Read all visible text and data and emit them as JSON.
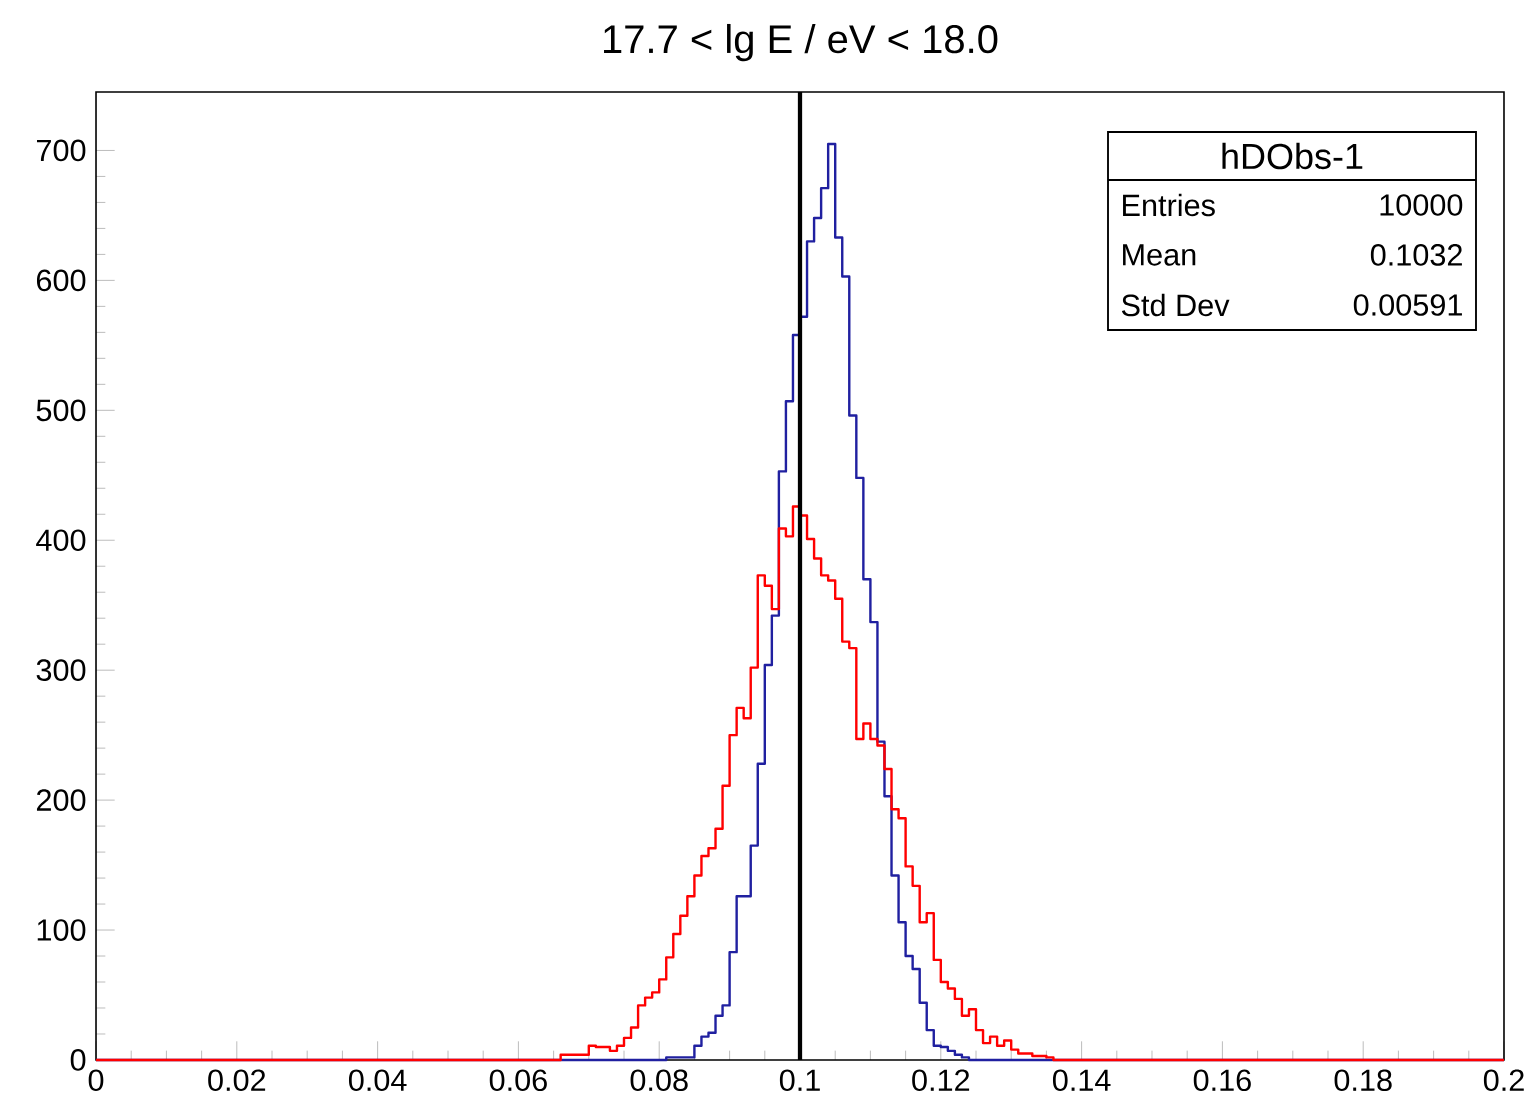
{
  "chart_data": {
    "type": "step",
    "title": "17.7 < lg E / eV < 18.0",
    "xlim": [
      0,
      0.2
    ],
    "xticks": [
      0,
      0.02,
      0.04,
      0.06,
      0.08,
      0.1,
      0.12,
      0.14,
      0.16,
      0.18,
      0.2
    ],
    "ylim": [
      0,
      745
    ],
    "yticks": [
      0,
      100,
      200,
      300,
      400,
      500,
      600,
      700
    ],
    "series": [
      {
        "color": "#2020a0",
        "x": [
          0,
          0.081,
          0.085,
          0.086,
          0.087,
          0.088,
          0.089,
          0.09,
          0.091,
          0.092,
          0.093,
          0.094,
          0.095,
          0.096,
          0.097,
          0.098,
          0.099,
          0.1,
          0.101,
          0.102,
          0.103,
          0.104,
          0.105,
          0.106,
          0.107,
          0.108,
          0.109,
          0.11,
          0.111,
          0.112,
          0.113,
          0.114,
          0.115,
          0.116,
          0.117,
          0.118,
          0.119,
          0.12,
          0.121,
          0.122,
          0.123,
          0.124,
          0.2
        ],
        "values": [
          0,
          2,
          11,
          18,
          21,
          34,
          42,
          83,
          126,
          126,
          165,
          228,
          304,
          342,
          453,
          507,
          558,
          572,
          630,
          648,
          671,
          705,
          633,
          603,
          496,
          448,
          370,
          337,
          245,
          203,
          142,
          106,
          80,
          70,
          44,
          23,
          11,
          10,
          7,
          4,
          2,
          0,
          0
        ]
      },
      {
        "color": "#ff0000",
        "x": [
          0,
          0.066,
          0.067,
          0.068,
          0.069,
          0.07,
          0.071,
          0.072,
          0.073,
          0.074,
          0.075,
          0.076,
          0.077,
          0.078,
          0.079,
          0.08,
          0.081,
          0.082,
          0.083,
          0.084,
          0.085,
          0.086,
          0.087,
          0.088,
          0.089,
          0.09,
          0.091,
          0.092,
          0.093,
          0.094,
          0.095,
          0.096,
          0.097,
          0.098,
          0.099,
          0.1,
          0.101,
          0.102,
          0.103,
          0.104,
          0.105,
          0.106,
          0.107,
          0.108,
          0.109,
          0.11,
          0.111,
          0.112,
          0.113,
          0.114,
          0.115,
          0.116,
          0.117,
          0.118,
          0.119,
          0.12,
          0.121,
          0.122,
          0.123,
          0.124,
          0.125,
          0.126,
          0.127,
          0.128,
          0.129,
          0.13,
          0.131,
          0.133,
          0.135,
          0.136,
          0.2
        ],
        "values": [
          0,
          4,
          4,
          4,
          4,
          11,
          10,
          10,
          7,
          11,
          17,
          25,
          42,
          48,
          52,
          62,
          79,
          97,
          111,
          126,
          142,
          157,
          163,
          178,
          211,
          250,
          271,
          263,
          302,
          373,
          365,
          347,
          409,
          403,
          426,
          419,
          401,
          386,
          373,
          369,
          355,
          322,
          317,
          247,
          259,
          247,
          242,
          224,
          193,
          186,
          149,
          134,
          106,
          113,
          77,
          60,
          55,
          47,
          34,
          39,
          23,
          13,
          18,
          11,
          15,
          8,
          5,
          3,
          2,
          0,
          0
        ]
      }
    ],
    "ref_lines": [
      {
        "axis": "x",
        "value": 0.1,
        "color": "#000000"
      }
    ],
    "annotations": [
      "hDObs-1",
      "Entries",
      "10000",
      "Mean",
      "0.1032",
      "Std Dev",
      "0.00591"
    ]
  }
}
